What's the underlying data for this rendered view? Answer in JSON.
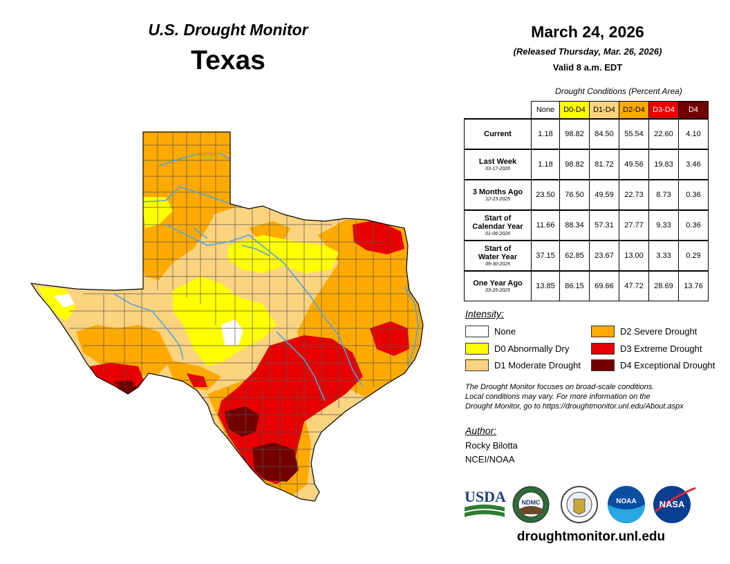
{
  "header": {
    "title": "U.S. Drought Monitor",
    "state": "Texas",
    "date": "March 24, 2026",
    "released": "(Released Thursday, Mar. 26, 2026)",
    "valid": "Valid 8 a.m. EDT"
  },
  "conditions": {
    "caption": "Drought Conditions (Percent Area)",
    "columns": [
      "None",
      "D0-D4",
      "D1-D4",
      "D2-D4",
      "D3-D4",
      "D4"
    ],
    "rows": [
      {
        "label": "Current",
        "label2": "",
        "date": "",
        "values": [
          "1.18",
          "98.82",
          "84.50",
          "55.54",
          "22.60",
          "4.10"
        ]
      },
      {
        "label": "Last Week",
        "label2": "",
        "date": "03-17-2026",
        "values": [
          "1.18",
          "98.82",
          "81.72",
          "49.56",
          "19.83",
          "3.46"
        ]
      },
      {
        "label": "3 Months Ago",
        "label2": "",
        "date": "12-23-2025",
        "values": [
          "23.50",
          "76.50",
          "49.59",
          "22.73",
          "8.73",
          "0.36"
        ]
      },
      {
        "label": "Start of",
        "label2": "Calendar Year",
        "date": "01-06-2026",
        "values": [
          "11.66",
          "88.34",
          "57.31",
          "27.77",
          "9.33",
          "0.36"
        ]
      },
      {
        "label": "Start of",
        "label2": "Water Year",
        "date": "09-30-2025",
        "values": [
          "37.15",
          "62.85",
          "23.67",
          "13.00",
          "3.33",
          "0.29"
        ]
      },
      {
        "label": "One Year Ago",
        "label2": "",
        "date": "03-25-2025",
        "values": [
          "13.85",
          "86.15",
          "69.66",
          "47.72",
          "28.69",
          "13.76"
        ]
      }
    ]
  },
  "legend": {
    "heading": "Intensity:",
    "items": [
      {
        "code": "none",
        "label": "None",
        "color": "#ffffff"
      },
      {
        "code": "d0",
        "label": "D0 Abnormally Dry",
        "color": "#ffff00"
      },
      {
        "code": "d1",
        "label": "D1 Moderate Drought",
        "color": "#fcd37f"
      },
      {
        "code": "d2",
        "label": "D2 Severe Drought",
        "color": "#ffaa00"
      },
      {
        "code": "d3",
        "label": "D3 Extreme Drought",
        "color": "#e60000"
      },
      {
        "code": "d4",
        "label": "D4 Exceptional Drought",
        "color": "#730000"
      }
    ]
  },
  "note": {
    "line1": "The Drought Monitor focuses on broad-scale conditions.",
    "line2": "Local conditions may vary. For more information on the",
    "line3": "Drought Monitor, go to https://droughtmonitor.unl.edu/About.aspx"
  },
  "author": {
    "heading": "Author:",
    "name": "Rocky Bilotta",
    "org": "NCEI/NOAA"
  },
  "logos": {
    "usda": "USDA",
    "ndmc": "NDMC",
    "noaa": "NOAA",
    "nasa": "NASA"
  },
  "footer": {
    "url": "droughtmonitor.unl.edu"
  },
  "colors": {
    "header_none": "#ffffff",
    "header_d0": "#ffff00",
    "header_d1": "#fcd37f",
    "header_d2": "#ffaa00",
    "header_d3": "#e60000",
    "header_d4": "#730000",
    "river": "#4fa3e0"
  }
}
